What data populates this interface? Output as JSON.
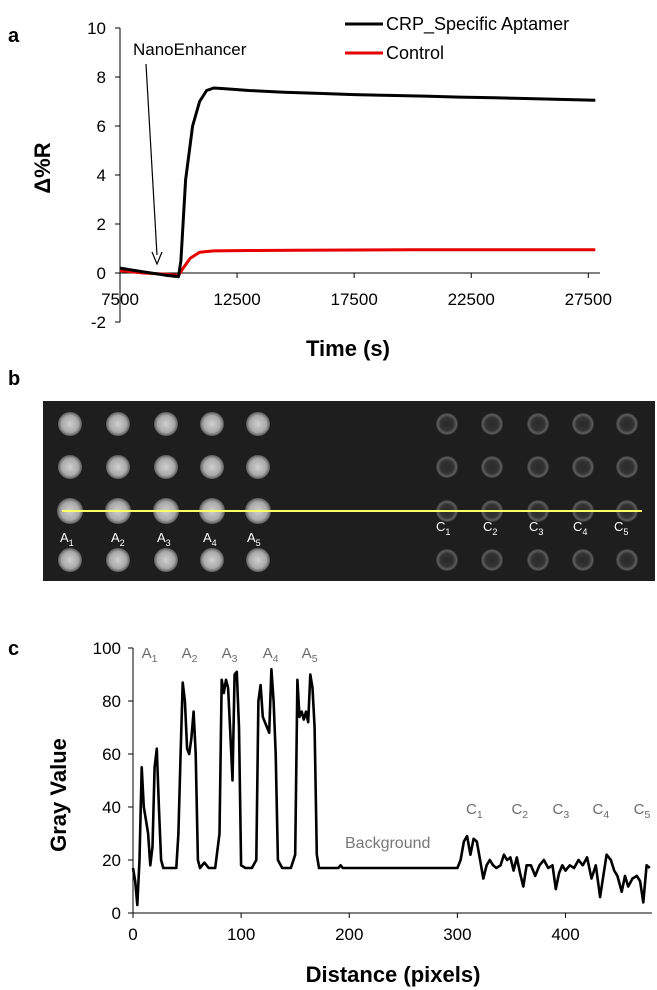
{
  "panels": {
    "a": "a",
    "b": "b",
    "c": "c"
  },
  "chart_data": [
    {
      "type": "line",
      "xlabel": "Time (s)",
      "ylabel": "Δ%R",
      "xlim": [
        7500,
        28000
      ],
      "ylim": [
        -2,
        10
      ],
      "xticks": [
        7500,
        12500,
        17500,
        22500,
        27500
      ],
      "yticks": [
        -2,
        0,
        2,
        4,
        6,
        8,
        10
      ],
      "annotation": "NanoEnhancer",
      "legend_position": "top-right",
      "series": [
        {
          "name": "CRP_Specific Aptamer",
          "color": "#000000",
          "points": [
            [
              7500,
              0.2
            ],
            [
              8500,
              0.05
            ],
            [
              9500,
              -0.1
            ],
            [
              10000,
              -0.15
            ],
            [
              10100,
              0.5
            ],
            [
              10300,
              3.8
            ],
            [
              10600,
              6.0
            ],
            [
              10900,
              7.0
            ],
            [
              11200,
              7.45
            ],
            [
              11500,
              7.55
            ],
            [
              12000,
              7.52
            ],
            [
              13000,
              7.45
            ],
            [
              14500,
              7.38
            ],
            [
              16000,
              7.33
            ],
            [
              17500,
              7.28
            ],
            [
              19000,
              7.25
            ],
            [
              20500,
              7.22
            ],
            [
              22000,
              7.18
            ],
            [
              23500,
              7.15
            ],
            [
              25000,
              7.12
            ],
            [
              26500,
              7.08
            ],
            [
              27800,
              7.05
            ]
          ]
        },
        {
          "name": "Control",
          "color": "#e60000",
          "points": [
            [
              7500,
              0.1
            ],
            [
              8500,
              0.0
            ],
            [
              9500,
              -0.05
            ],
            [
              10000,
              -0.1
            ],
            [
              10200,
              0.2
            ],
            [
              10500,
              0.6
            ],
            [
              10900,
              0.85
            ],
            [
              11500,
              0.9
            ],
            [
              13000,
              0.92
            ],
            [
              15000,
              0.93
            ],
            [
              17500,
              0.94
            ],
            [
              20000,
              0.95
            ],
            [
              22500,
              0.95
            ],
            [
              25000,
              0.95
            ],
            [
              27800,
              0.95
            ]
          ]
        }
      ]
    },
    {
      "type": "line",
      "xlabel": "Distance (pixels)",
      "ylabel": "Gray Value",
      "xlim": [
        0,
        480
      ],
      "ylim": [
        0,
        100
      ],
      "xticks": [
        0,
        100,
        200,
        300,
        400
      ],
      "yticks": [
        0,
        20,
        40,
        60,
        80,
        100
      ],
      "annotation": "Background",
      "peak_labels": [
        {
          "main": "A",
          "sub": "1",
          "x": 8
        },
        {
          "main": "A",
          "sub": "2",
          "x": 45
        },
        {
          "main": "A",
          "sub": "3",
          "x": 82
        },
        {
          "main": "A",
          "sub": "4",
          "x": 120
        },
        {
          "main": "A",
          "sub": "5",
          "x": 156
        },
        {
          "main": "C",
          "sub": "1",
          "x": 308
        },
        {
          "main": "C",
          "sub": "2",
          "x": 350
        },
        {
          "main": "C",
          "sub": "3",
          "x": 388
        },
        {
          "main": "C",
          "sub": "4",
          "x": 425
        },
        {
          "main": "C",
          "sub": "5",
          "x": 463
        }
      ],
      "series": [
        {
          "color": "#000000",
          "points": [
            [
              0,
              17
            ],
            [
              2,
              12
            ],
            [
              4,
              3
            ],
            [
              6,
              20
            ],
            [
              8,
              55
            ],
            [
              10,
              40
            ],
            [
              12,
              35
            ],
            [
              14,
              30
            ],
            [
              16,
              18
            ],
            [
              18,
              25
            ],
            [
              20,
              55
            ],
            [
              22,
              62
            ],
            [
              24,
              40
            ],
            [
              26,
              20
            ],
            [
              28,
              17
            ],
            [
              35,
              17
            ],
            [
              40,
              17
            ],
            [
              42,
              30
            ],
            [
              44,
              60
            ],
            [
              46,
              87
            ],
            [
              48,
              80
            ],
            [
              50,
              62
            ],
            [
              52,
              60
            ],
            [
              54,
              66
            ],
            [
              56,
              76
            ],
            [
              58,
              60
            ],
            [
              60,
              20
            ],
            [
              62,
              17
            ],
            [
              66,
              19
            ],
            [
              70,
              17
            ],
            [
              76,
              17
            ],
            [
              80,
              30
            ],
            [
              82,
              88
            ],
            [
              84,
              83
            ],
            [
              86,
              88
            ],
            [
              88,
              85
            ],
            [
              90,
              68
            ],
            [
              92,
              50
            ],
            [
              94,
              90
            ],
            [
              96,
              91
            ],
            [
              98,
              70
            ],
            [
              100,
              18
            ],
            [
              104,
              17
            ],
            [
              110,
              17
            ],
            [
              114,
              20
            ],
            [
              116,
              80
            ],
            [
              118,
              86
            ],
            [
              120,
              74
            ],
            [
              122,
              72
            ],
            [
              124,
              70
            ],
            [
              126,
              68
            ],
            [
              128,
              92
            ],
            [
              130,
              80
            ],
            [
              132,
              60
            ],
            [
              134,
              20
            ],
            [
              138,
              17
            ],
            [
              146,
              17
            ],
            [
              150,
              22
            ],
            [
              152,
              88
            ],
            [
              154,
              74
            ],
            [
              156,
              76
            ],
            [
              158,
              73
            ],
            [
              160,
              76
            ],
            [
              162,
              72
            ],
            [
              164,
              90
            ],
            [
              166,
              85
            ],
            [
              168,
              70
            ],
            [
              170,
              22
            ],
            [
              172,
              17
            ],
            [
              190,
              17
            ],
            [
              192,
              18
            ],
            [
              194,
              17
            ],
            [
              300,
              17
            ],
            [
              303,
              20
            ],
            [
              306,
              27
            ],
            [
              309,
              29
            ],
            [
              312,
              22
            ],
            [
              315,
              28
            ],
            [
              318,
              27
            ],
            [
              321,
              20
            ],
            [
              324,
              13
            ],
            [
              327,
              18
            ],
            [
              330,
              20
            ],
            [
              333,
              18
            ],
            [
              336,
              17
            ],
            [
              340,
              18
            ],
            [
              343,
              22
            ],
            [
              346,
              20
            ],
            [
              349,
              21
            ],
            [
              352,
              16
            ],
            [
              355,
              21
            ],
            [
              358,
              15
            ],
            [
              361,
              10
            ],
            [
              364,
              18
            ],
            [
              368,
              18
            ],
            [
              372,
              14
            ],
            [
              376,
              18
            ],
            [
              380,
              20
            ],
            [
              384,
              17
            ],
            [
              388,
              18
            ],
            [
              391,
              9
            ],
            [
              394,
              15
            ],
            [
              397,
              18
            ],
            [
              400,
              16
            ],
            [
              404,
              18
            ],
            [
              408,
              17
            ],
            [
              412,
              20
            ],
            [
              416,
              18
            ],
            [
              420,
              21
            ],
            [
              424,
              13
            ],
            [
              428,
              18
            ],
            [
              432,
              6
            ],
            [
              435,
              14
            ],
            [
              438,
              22
            ],
            [
              442,
              20
            ],
            [
              445,
              16
            ],
            [
              448,
              14
            ],
            [
              452,
              8
            ],
            [
              455,
              14
            ],
            [
              458,
              10
            ],
            [
              462,
              13
            ],
            [
              466,
              14
            ],
            [
              469,
              12
            ],
            [
              472,
              4
            ],
            [
              475,
              18
            ],
            [
              478,
              17
            ]
          ]
        }
      ]
    }
  ],
  "image_panel": {
    "left_columns": 5,
    "right_columns": 5,
    "rows": 4,
    "line_color": "#ffff66",
    "labels_a": [
      {
        "main": "A",
        "sub": "1"
      },
      {
        "main": "A",
        "sub": "2"
      },
      {
        "main": "A",
        "sub": "3"
      },
      {
        "main": "A",
        "sub": "4"
      },
      {
        "main": "A",
        "sub": "5"
      }
    ],
    "labels_c": [
      {
        "main": "C",
        "sub": "1"
      },
      {
        "main": "C",
        "sub": "2"
      },
      {
        "main": "C",
        "sub": "3"
      },
      {
        "main": "C",
        "sub": "4"
      },
      {
        "main": "C",
        "sub": "5"
      }
    ]
  }
}
